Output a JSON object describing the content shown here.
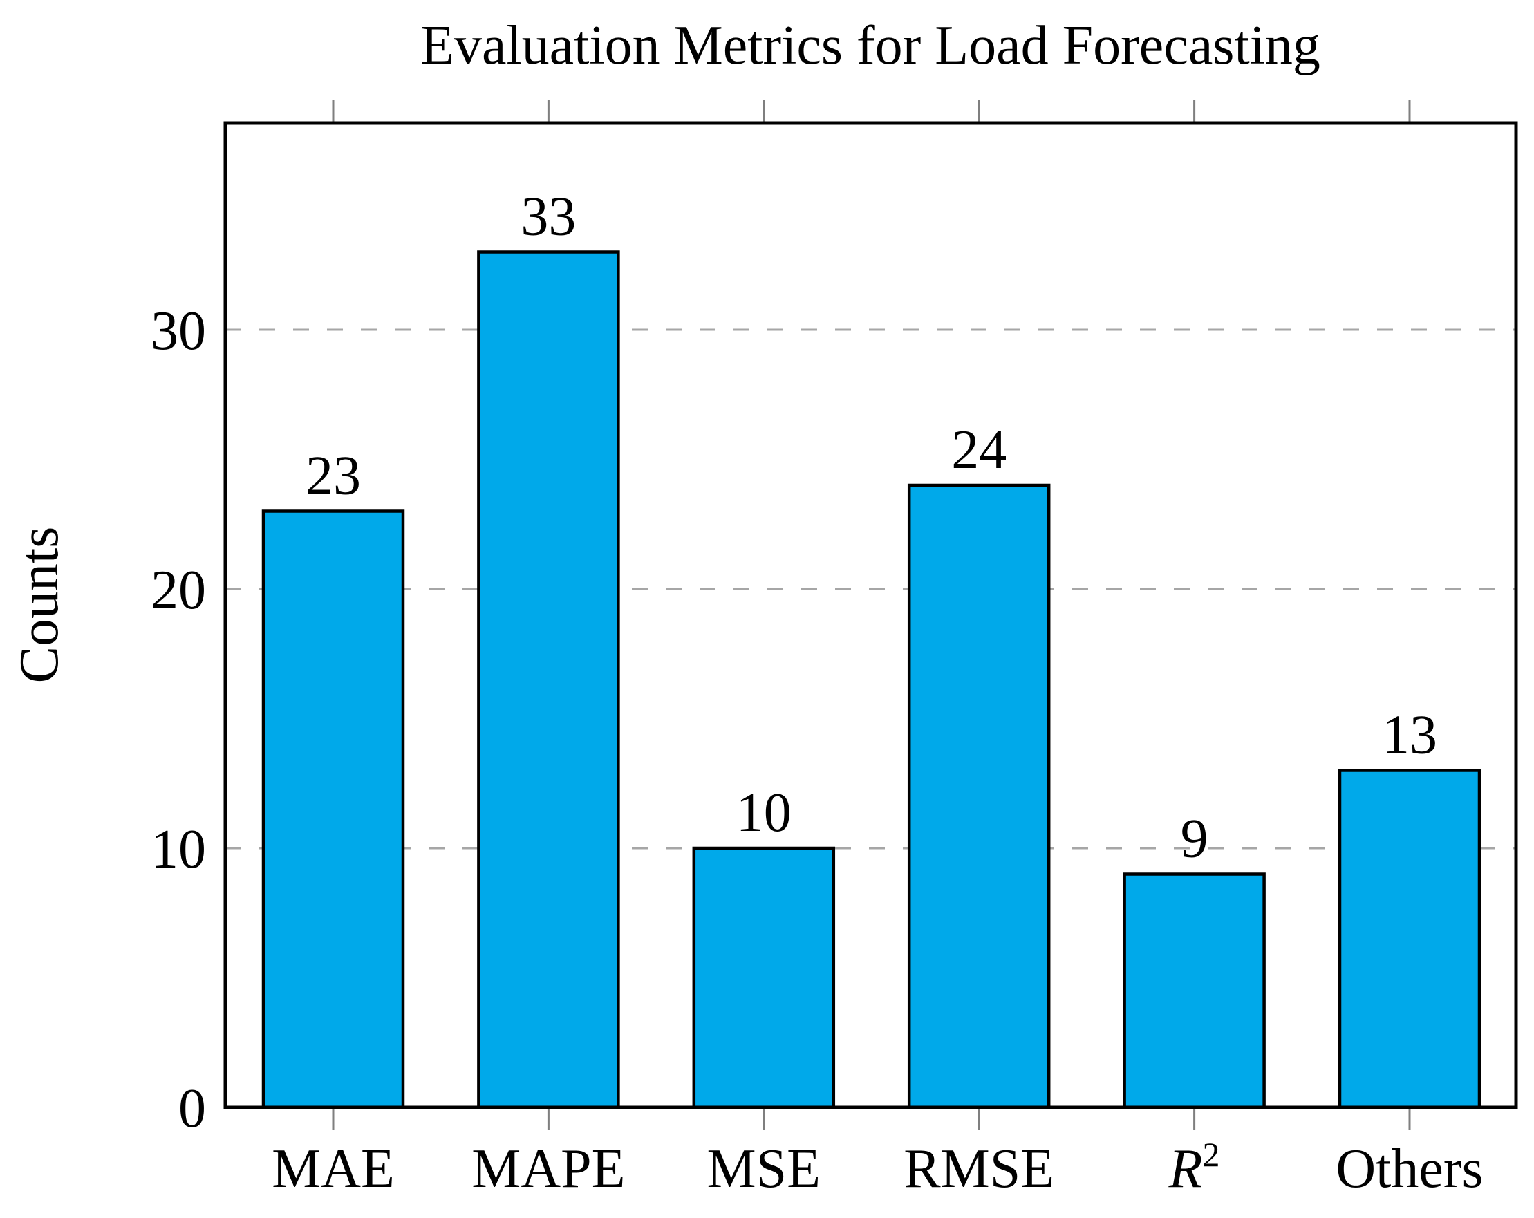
{
  "chart_data": {
    "type": "bar",
    "title": "Evaluation Metrics for Load Forecasting",
    "ylabel": "Counts",
    "xlabel": "",
    "categories": [
      "MAE",
      "MAPE",
      "MSE",
      "RMSE",
      "R²",
      "Others"
    ],
    "categories_rich": [
      {
        "text": "MAE",
        "italic": false,
        "superscript": ""
      },
      {
        "text": "MAPE",
        "italic": false,
        "superscript": ""
      },
      {
        "text": "MSE",
        "italic": false,
        "superscript": ""
      },
      {
        "text": "RMSE",
        "italic": false,
        "superscript": ""
      },
      {
        "text": "R",
        "italic": true,
        "superscript": "2"
      },
      {
        "text": "Others",
        "italic": false,
        "superscript": ""
      }
    ],
    "values": [
      23,
      33,
      10,
      24,
      9,
      13
    ],
    "bar_labels": [
      "23",
      "33",
      "10",
      "24",
      "9",
      "13"
    ],
    "yticks": [
      0,
      10,
      20,
      30
    ],
    "ylim": [
      0,
      38
    ],
    "grid": "horizontal-dashed",
    "grid_at": [
      10,
      20,
      30
    ],
    "legend_position": "none",
    "colors": {
      "bar_fill": "#00A9EA",
      "bar_stroke": "#000000",
      "axis_frame": "#000000",
      "grid_line": "#A6A6A6",
      "tick_mark": "#7F7F7F",
      "text": "#000000",
      "background": "#FFFFFF"
    }
  }
}
